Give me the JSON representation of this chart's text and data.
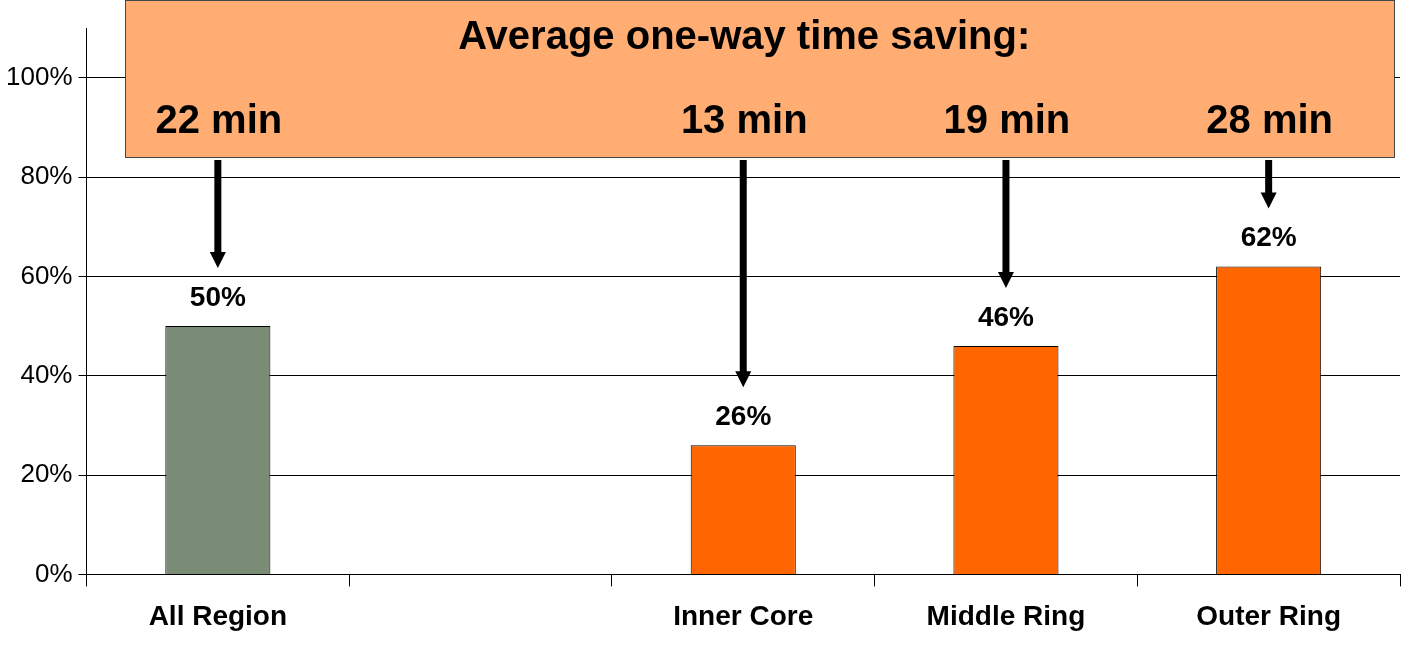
{
  "chart_data": {
    "type": "bar",
    "categories": [
      "All Region",
      null,
      "Inner Core",
      "Middle Ring",
      "Outer Ring"
    ],
    "values": [
      50,
      null,
      26,
      46,
      62
    ],
    "colors": [
      "#7a8b76",
      null,
      "#ff6600",
      "#ff6600",
      "#ff6600"
    ],
    "value_labels": [
      "50%",
      null,
      "26%",
      "46%",
      "62%"
    ],
    "ylim": [
      0,
      110
    ],
    "yticks": [
      {
        "value": 0,
        "label": "0%"
      },
      {
        "value": 20,
        "label": "20%"
      },
      {
        "value": 40,
        "label": "40%"
      },
      {
        "value": 60,
        "label": "60%"
      },
      {
        "value": 80,
        "label": "80%"
      },
      {
        "value": 100,
        "label": "100%"
      }
    ],
    "grid": "y",
    "legend": false,
    "annotations": [
      "Average one-way time saving:",
      {
        "text": "22 min",
        "x": "All Region"
      },
      {
        "text": "13 min",
        "x": "Inner Core"
      },
      {
        "text": "19 min",
        "x": "Middle Ring"
      },
      {
        "text": "28 min",
        "x": "Outer Ring"
      }
    ]
  }
}
